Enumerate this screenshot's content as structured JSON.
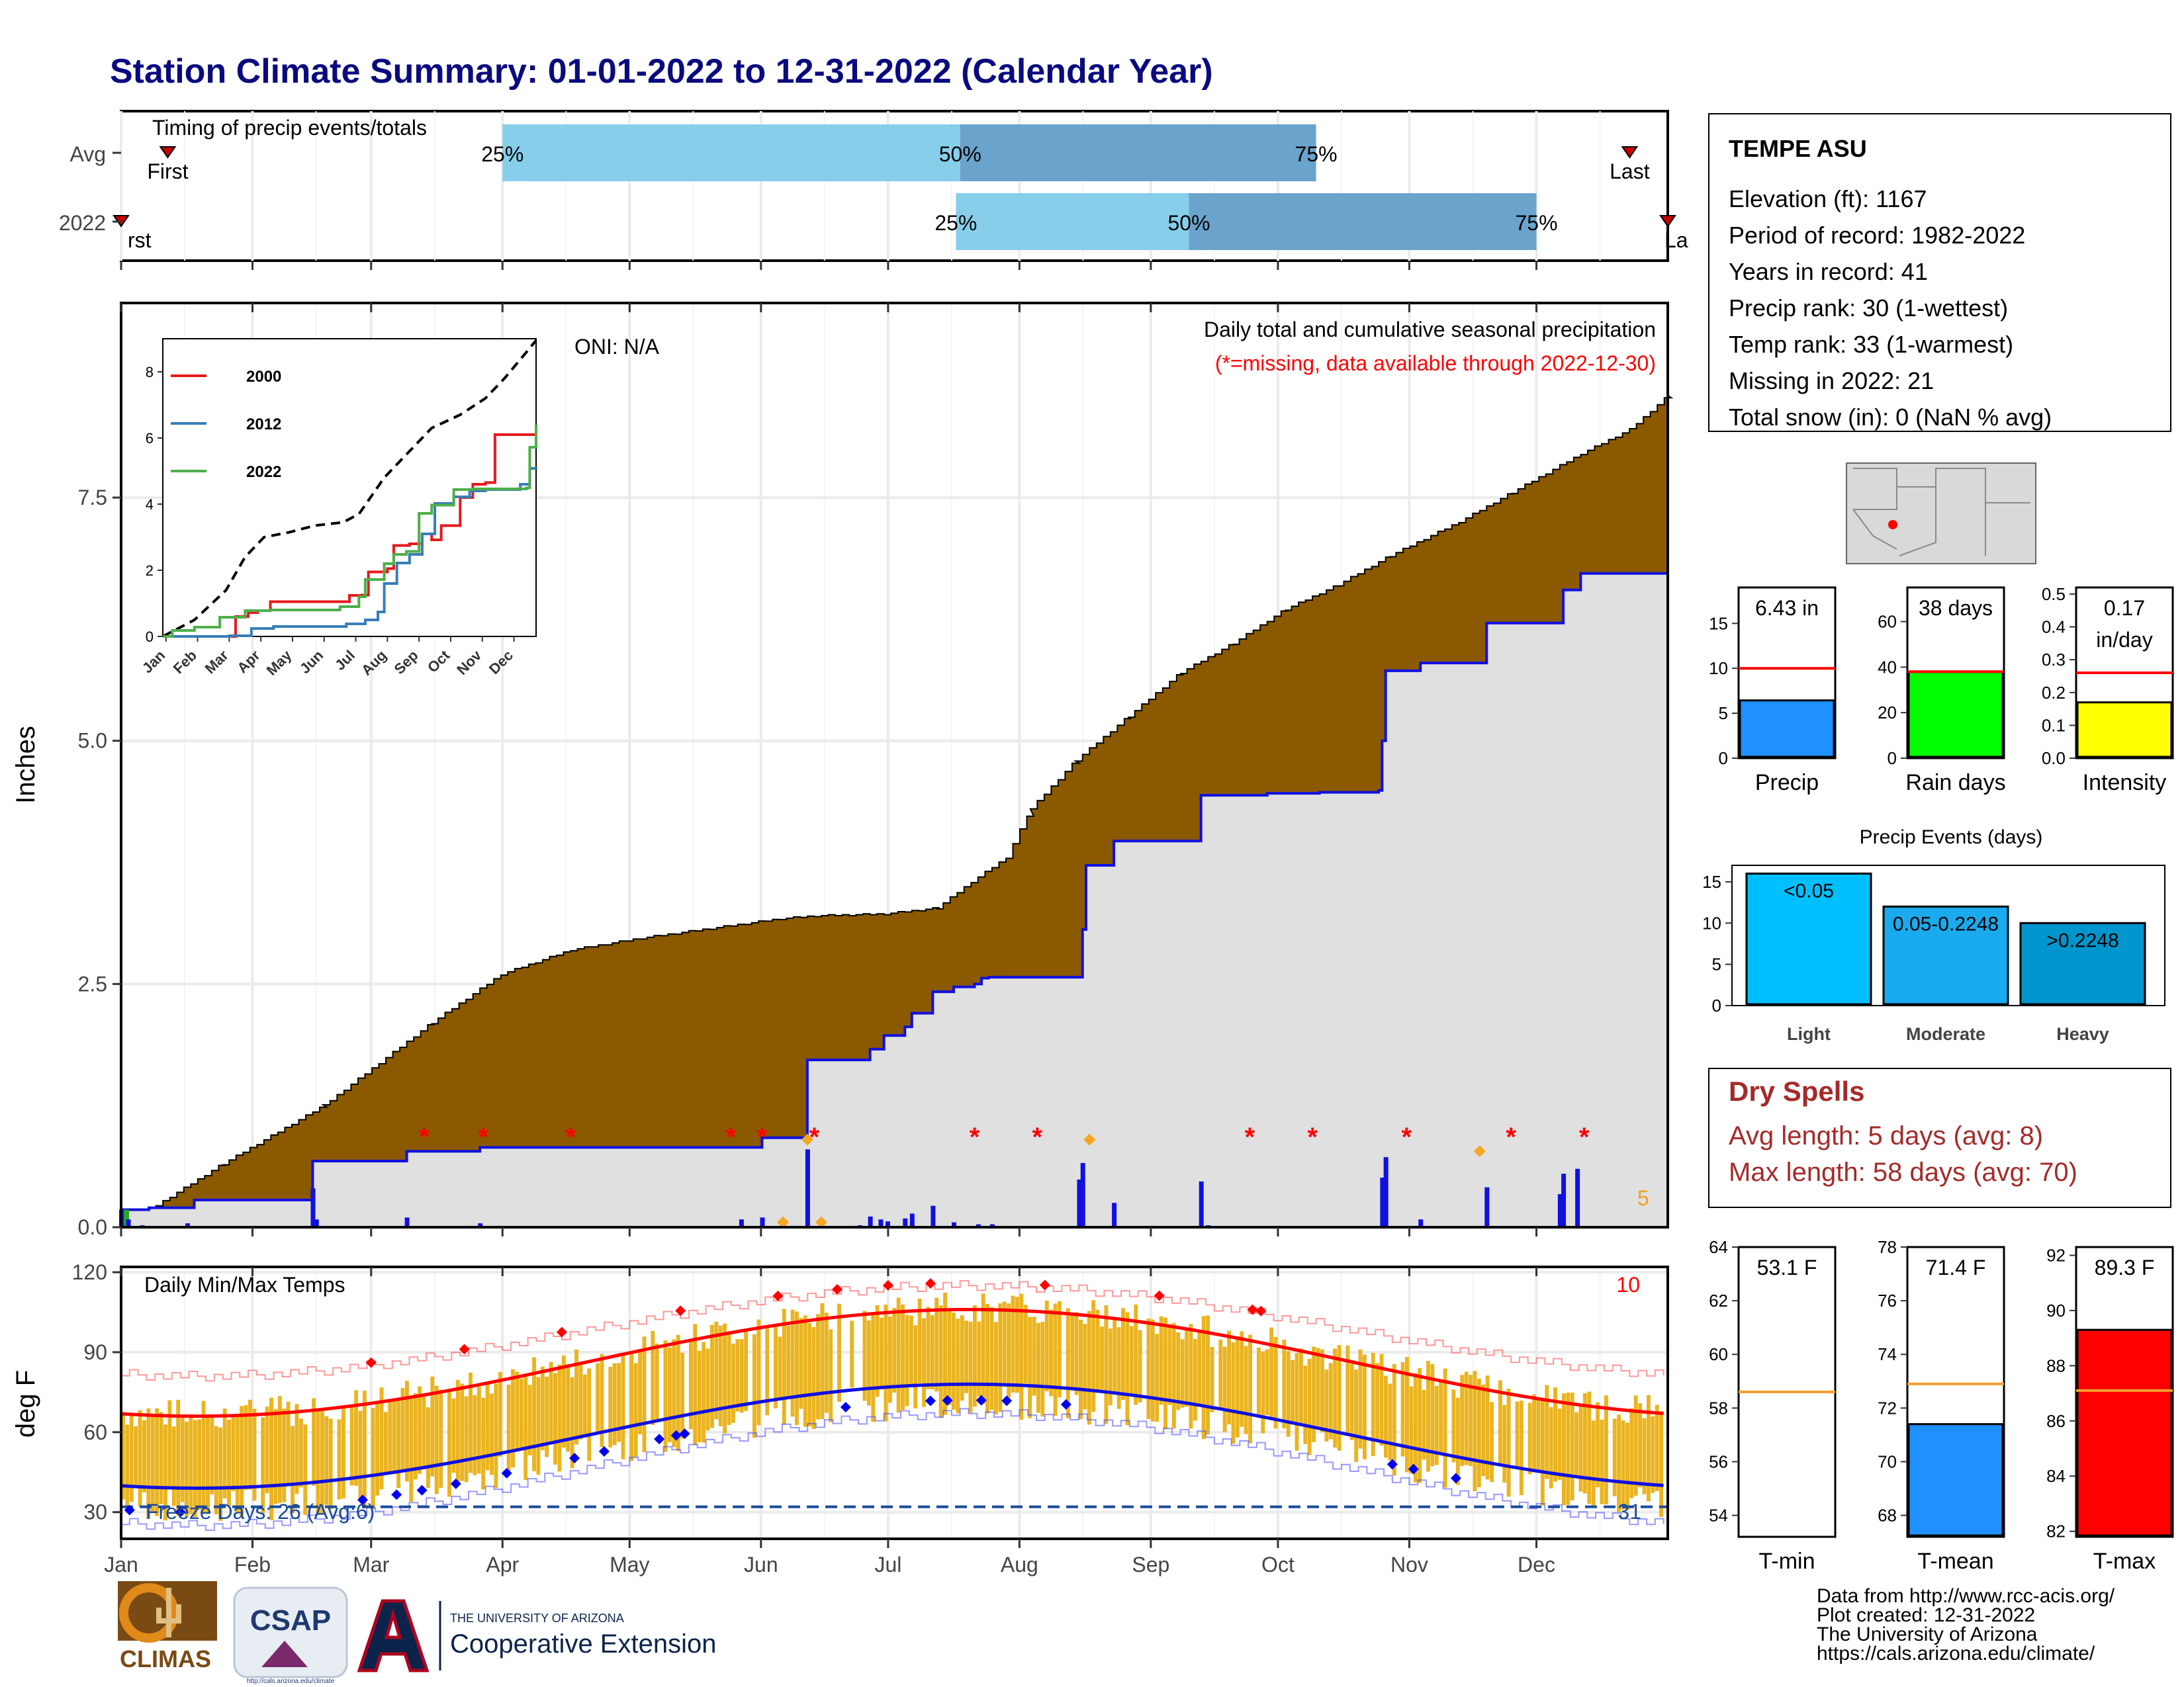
{
  "title": "Station Climate Summary: 01-01-2022 to 12-31-2022 (Calendar Year)",
  "colors": {
    "title": "#0a0a80",
    "brown": "#8b5a00",
    "grey_fill": "#e0e0e0",
    "blue": "#1010e0",
    "light_blue": "#87ceeb",
    "mid_blue": "#6aa3cc",
    "red": "#ff0000",
    "gold": "#eab420",
    "green": "#00ff00",
    "yellow": "#ffff00",
    "dry_red": "#a52a2a",
    "dark_blue_text": "#1a4a9a"
  },
  "months": [
    "Jan",
    "Feb",
    "Mar",
    "Apr",
    "May",
    "Jun",
    "Jul",
    "Aug",
    "Sep",
    "Oct",
    "Nov",
    "Dec"
  ],
  "timing": {
    "label": "Timing of precip events/totals",
    "rows": [
      "Avg",
      "2022"
    ],
    "avg": {
      "first_label": "First",
      "last_label": "Last",
      "first_doy": 12,
      "last_doy": 357,
      "p25_doy": 91,
      "p50_doy": 199,
      "p75_doy": 283
    },
    "y2022": {
      "first_label": "rst",
      "last_label": "La",
      "first_doy": 1,
      "last_doy": 366,
      "p25_doy": 198,
      "p50_doy": 253,
      "p75_doy": 335
    },
    "pct_labels": [
      "25%",
      "50%",
      "75%"
    ]
  },
  "station": {
    "name": "TEMPE ASU",
    "lines": [
      "Elevation (ft): 1167",
      "Period of record: 1982-2022",
      "Years in record: 41",
      "Precip rank: 30 (1-wettest)",
      "Temp rank: 33 (1-warmest)",
      "Missing in 2022: 21",
      "Total snow (in): 0 (NaN % avg)"
    ]
  },
  "precip_panel": {
    "ylabel": "Inches",
    "yticks": [
      0.0,
      2.5,
      5.0,
      7.5
    ],
    "ytick_labels": [
      "0.0",
      "2.5",
      "5.0",
      "7.5"
    ],
    "ymax": 9.5,
    "oni": "ONI: N/A",
    "subtitle1": "Daily total and cumulative seasonal precipitation",
    "subtitle2": "(*=missing, data available through 2022-12-30)",
    "corner_label": "5",
    "avg_cumulative_knots": [
      [
        1,
        0.0
      ],
      [
        30,
        0.65
      ],
      [
        59,
        1.25
      ],
      [
        90,
        2.1
      ],
      [
        110,
        2.6
      ],
      [
        130,
        2.85
      ],
      [
        150,
        2.97
      ],
      [
        170,
        3.07
      ],
      [
        190,
        3.17
      ],
      [
        200,
        3.2
      ],
      [
        220,
        3.22
      ],
      [
        235,
        3.28
      ],
      [
        245,
        3.55
      ],
      [
        255,
        3.8
      ],
      [
        262,
        4.3
      ],
      [
        275,
        4.8
      ],
      [
        290,
        5.25
      ],
      [
        305,
        5.7
      ],
      [
        320,
        6.0
      ],
      [
        335,
        6.35
      ],
      [
        350,
        6.6
      ],
      [
        365,
        6.9
      ],
      [
        385,
        7.25
      ],
      [
        400,
        7.55
      ],
      [
        420,
        7.95
      ],
      [
        434,
        8.2
      ],
      [
        445,
        8.55
      ]
    ],
    "obs_cumulative_steps": [
      [
        1,
        0.18
      ],
      [
        9,
        0.2
      ],
      [
        20,
        0.2
      ],
      [
        22,
        0.28
      ],
      [
        55,
        0.28
      ],
      [
        56,
        0.68
      ],
      [
        80,
        0.68
      ],
      [
        83,
        0.78
      ],
      [
        103,
        0.78
      ],
      [
        104,
        0.82
      ],
      [
        179,
        0.82
      ],
      [
        185,
        0.92
      ],
      [
        197,
        0.92
      ],
      [
        198,
        1.72
      ],
      [
        214,
        1.72
      ],
      [
        216,
        1.83
      ],
      [
        220,
        1.97
      ],
      [
        225,
        1.97
      ],
      [
        226,
        2.06
      ],
      [
        228,
        2.2
      ],
      [
        233,
        2.2
      ],
      [
        234,
        2.42
      ],
      [
        240,
        2.47
      ],
      [
        246,
        2.5
      ],
      [
        248,
        2.56
      ],
      [
        250,
        2.57
      ],
      [
        257,
        2.57
      ],
      [
        264,
        2.57
      ],
      [
        276,
        2.57
      ],
      [
        277,
        3.06
      ],
      [
        278,
        3.72
      ],
      [
        285,
        3.72
      ],
      [
        286,
        3.97
      ],
      [
        310,
        3.97
      ],
      [
        311,
        4.44
      ],
      [
        320,
        4.44
      ],
      [
        330,
        4.46
      ],
      [
        345,
        4.47
      ],
      [
        362,
        4.49
      ],
      [
        363,
        5.0
      ],
      [
        364,
        5.72
      ],
      [
        373,
        5.72
      ],
      [
        374,
        5.8
      ],
      [
        392,
        5.8
      ],
      [
        393,
        6.21
      ],
      [
        414,
        6.21
      ],
      [
        415,
        6.55
      ],
      [
        418,
        6.55
      ],
      [
        420,
        6.72
      ]
    ],
    "daily_bars": [
      [
        1,
        0.18
      ],
      [
        3,
        0.08
      ],
      [
        7,
        0.02
      ],
      [
        20,
        0.04
      ],
      [
        56,
        0.4
      ],
      [
        57,
        0.08
      ],
      [
        83,
        0.1
      ],
      [
        104,
        0.04
      ],
      [
        179,
        0.08
      ],
      [
        185,
        0.1
      ],
      [
        198,
        0.8
      ],
      [
        213,
        0.02
      ],
      [
        216,
        0.11
      ],
      [
        219,
        0.08
      ],
      [
        221,
        0.06
      ],
      [
        226,
        0.09
      ],
      [
        228,
        0.14
      ],
      [
        234,
        0.22
      ],
      [
        240,
        0.05
      ],
      [
        247,
        0.03
      ],
      [
        251,
        0.03
      ],
      [
        276,
        0.49
      ],
      [
        277,
        0.66
      ],
      [
        286,
        0.25
      ],
      [
        311,
        0.47
      ],
      [
        313,
        0.02
      ],
      [
        363,
        0.51
      ],
      [
        364,
        0.72
      ],
      [
        374,
        0.08
      ],
      [
        393,
        0.41
      ],
      [
        414,
        0.34
      ],
      [
        415,
        0.55
      ],
      [
        419,
        0.6
      ]
    ],
    "missing_doy": [
      88,
      105,
      130,
      176,
      185,
      200,
      246,
      264,
      325,
      343,
      370,
      400,
      421
    ],
    "orange_diamonds": [
      [
        198,
        0.9
      ],
      [
        279,
        0.9
      ],
      [
        391,
        0.78
      ],
      [
        202,
        0.05
      ],
      [
        191,
        0.05
      ]
    ]
  },
  "inset": {
    "yticks": [
      0,
      2,
      4,
      6,
      8
    ],
    "months": [
      "Jan",
      "Feb",
      "Mar",
      "Apr",
      "May",
      "Jun",
      "Jul",
      "Aug",
      "Sep",
      "Oct",
      "Nov",
      "Dec"
    ],
    "legend": [
      {
        "name": "2000",
        "color": "#e41a1c"
      },
      {
        "name": "2012",
        "color": "#377eb8"
      },
      {
        "name": "2022",
        "color": "#4daf4a"
      }
    ],
    "avg_series": [
      [
        0,
        0.0
      ],
      [
        1,
        0.5
      ],
      [
        2,
        1.4
      ],
      [
        2.6,
        2.4
      ],
      [
        3.2,
        3.0
      ],
      [
        4,
        3.15
      ],
      [
        4.8,
        3.35
      ],
      [
        5.7,
        3.45
      ],
      [
        6.2,
        3.7
      ],
      [
        7,
        4.8
      ],
      [
        7.8,
        5.6
      ],
      [
        8.5,
        6.3
      ],
      [
        9.4,
        6.7
      ],
      [
        10.2,
        7.2
      ],
      [
        10.8,
        7.8
      ],
      [
        11.5,
        8.6
      ],
      [
        11.8,
        8.95
      ]
    ],
    "series_2000": [
      [
        0,
        0.0
      ],
      [
        2,
        0.0
      ],
      [
        2.3,
        0.6
      ],
      [
        2.7,
        0.72
      ],
      [
        3.0,
        0.78
      ],
      [
        3.4,
        1.05
      ],
      [
        5.7,
        1.05
      ],
      [
        5.9,
        1.24
      ],
      [
        6.3,
        1.25
      ],
      [
        6.5,
        1.95
      ],
      [
        7.1,
        2.05
      ],
      [
        7.3,
        2.75
      ],
      [
        7.8,
        2.8
      ],
      [
        8.2,
        3.1
      ],
      [
        8.5,
        2.92
      ],
      [
        8.8,
        3.35
      ],
      [
        9.2,
        3.35
      ],
      [
        9.4,
        4.2
      ],
      [
        9.8,
        4.6
      ],
      [
        10.2,
        4.65
      ],
      [
        10.5,
        6.1
      ],
      [
        11.3,
        6.1
      ],
      [
        11.8,
        6.18
      ]
    ],
    "series_2012": [
      [
        0,
        0.0
      ],
      [
        2.1,
        0.02
      ],
      [
        2.8,
        0.24
      ],
      [
        3.5,
        0.3
      ],
      [
        5.4,
        0.3
      ],
      [
        5.8,
        0.38
      ],
      [
        6.4,
        0.5
      ],
      [
        6.8,
        0.74
      ],
      [
        7.0,
        1.6
      ],
      [
        7.4,
        2.22
      ],
      [
        7.8,
        2.48
      ],
      [
        8.2,
        3.1
      ],
      [
        8.6,
        4.02
      ],
      [
        9.2,
        4.22
      ],
      [
        9.7,
        4.4
      ],
      [
        10.2,
        4.44
      ],
      [
        11.3,
        4.6
      ],
      [
        11.6,
        5.08
      ],
      [
        11.8,
        5.1
      ]
    ],
    "series_2022": [
      [
        0,
        0.0
      ],
      [
        0.3,
        0.18
      ],
      [
        1.0,
        0.28
      ],
      [
        1.8,
        0.58
      ],
      [
        2.6,
        0.78
      ],
      [
        3.4,
        0.8
      ],
      [
        5.6,
        0.9
      ],
      [
        6.2,
        1.2
      ],
      [
        6.4,
        1.72
      ],
      [
        7.0,
        2.2
      ],
      [
        7.3,
        2.48
      ],
      [
        7.7,
        2.57
      ],
      [
        8.1,
        3.72
      ],
      [
        8.5,
        3.97
      ],
      [
        9.2,
        4.44
      ],
      [
        9.8,
        4.46
      ],
      [
        11.5,
        4.49
      ],
      [
        11.6,
        5.72
      ],
      [
        11.8,
        6.4
      ]
    ]
  },
  "bars_precip": [
    {
      "label": "Precip",
      "value": 6.43,
      "value_text": "6.43 in",
      "avg": 10.0,
      "ymax": 19,
      "yticks": [
        0,
        5,
        10,
        15
      ],
      "color": "#1e90ff"
    },
    {
      "label": "Rain days",
      "value": 38,
      "value_text": "38 days",
      "avg": 38,
      "ymax": 75,
      "yticks": [
        0,
        20,
        40,
        60
      ],
      "color": "#00ff00"
    },
    {
      "label": "Intensity",
      "value": 0.17,
      "value_text": "0.17 in/day",
      "value_text_1": "0.17",
      "value_text_2": "in/day",
      "avg": 0.26,
      "ymax": 0.52,
      "yticks": [
        0.0,
        0.1,
        0.2,
        0.3,
        0.4,
        0.5
      ],
      "ytick_labels": [
        "0.0",
        "0.1",
        "0.2",
        "0.3",
        "0.4",
        "0.5"
      ],
      "color": "#ffff00"
    }
  ],
  "precip_events": {
    "title": "Precip Events (days)",
    "yticks": [
      0,
      5,
      10,
      15
    ],
    "ymax": 17,
    "bars": [
      {
        "label": "Light",
        "value": 16,
        "text": "<0.05",
        "color": "#00bfff"
      },
      {
        "label": "Moderate",
        "value": 12,
        "text": "0.05-0.2248",
        "color": "#1aaaee"
      },
      {
        "label": "Heavy",
        "value": 10,
        "text": ">0.2248",
        "color": "#0095cc"
      }
    ]
  },
  "dry_spells": {
    "title": "Dry Spells",
    "line1": "Avg length: 5 days (avg: 8)",
    "line2": "Max length: 58 days (avg: 70)"
  },
  "temp_panel": {
    "ylabel": "deg F",
    "title": "Daily Min/Max Temps",
    "yticks": [
      30,
      60,
      90,
      120
    ],
    "ymin": 20,
    "ymax": 122,
    "freeze_line": 32,
    "freeze_label": "Freeze Days: 26 (Avg:6)",
    "top_right_count": "10",
    "bottom_right_count": "31"
  },
  "bars_temp": [
    {
      "label": "T-min",
      "value": 53.1,
      "value_text": "53.1 F",
      "avg": 58.6,
      "ymin": 53.2,
      "ymax": 64,
      "yticks": [
        54,
        56,
        58,
        60,
        62,
        64
      ],
      "color": "#ffffff"
    },
    {
      "label": "T-mean",
      "value": 71.4,
      "value_text": "71.4 F",
      "avg": 72.9,
      "ymin": 67.2,
      "ymax": 78,
      "yticks": [
        68,
        70,
        72,
        74,
        76,
        78
      ],
      "color": "#1e90ff"
    },
    {
      "label": "T-max",
      "value": 89.3,
      "value_text": "89.3 F",
      "avg": 87.1,
      "ymin": 81.8,
      "ymax": 92.3,
      "yticks": [
        82,
        84,
        86,
        88,
        90,
        92
      ],
      "color": "#ff0000"
    }
  ],
  "footer": {
    "line1": "Data from http://www.rcc-acis.org/",
    "line2": "Plot created: 12-31-2022",
    "line3": "The University of Arizona",
    "line4": "https://cals.arizona.edu/climate/"
  },
  "logos": {
    "climas": "CLIMAS",
    "csap": "CSAP",
    "csap_url": "http://cals.arizona.edu/climate",
    "ua_small": "THE UNIVERSITY OF ARIZONA",
    "ua_big": "Cooperative Extension"
  }
}
